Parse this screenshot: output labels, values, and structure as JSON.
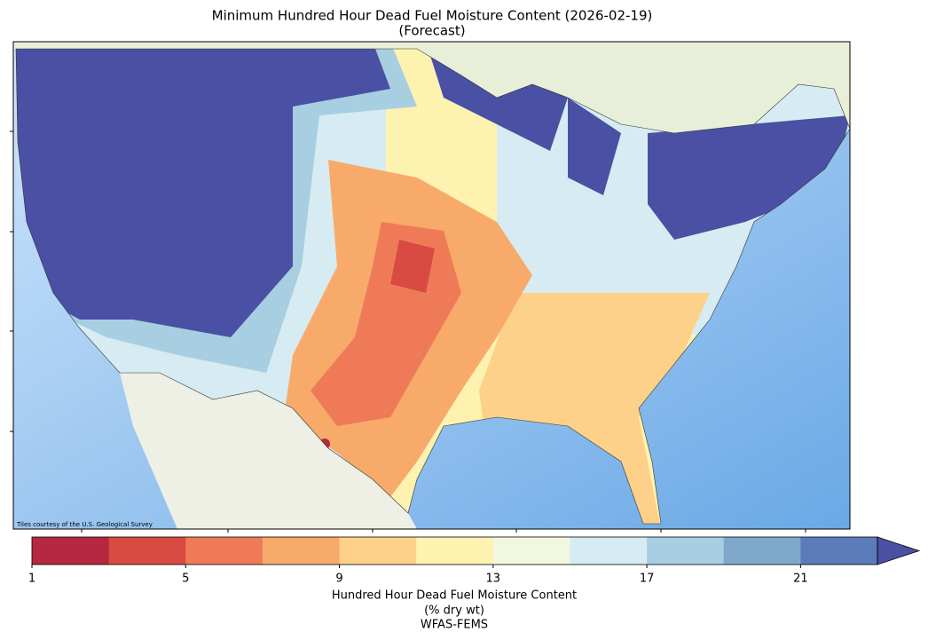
{
  "title": [
    "Minimum Hundred Hour Dead Fuel Moisture Content (2026-02-19)",
    "(Forecast)"
  ],
  "attribution": "Tiles courtesy of the U.S. Geological Survey",
  "colorbar": {
    "lim": [
      1,
      23
    ],
    "ticks": [
      1,
      5,
      9,
      13,
      17,
      21
    ],
    "colors": [
      "#b5283f",
      "#d94a42",
      "#ef7a58",
      "#f8aa6a",
      "#fdd18a",
      "#fef2b0",
      "#f2f8e0",
      "#d6ecf2",
      "#a8cee2",
      "#7ea9cc",
      "#5b7cb8"
    ],
    "extend_color": "#4a50a3",
    "label": [
      "Hundred Hour Dead Fuel Moisture Content",
      "(% dry wt)",
      "WFAS-FEMS"
    ]
  }
}
